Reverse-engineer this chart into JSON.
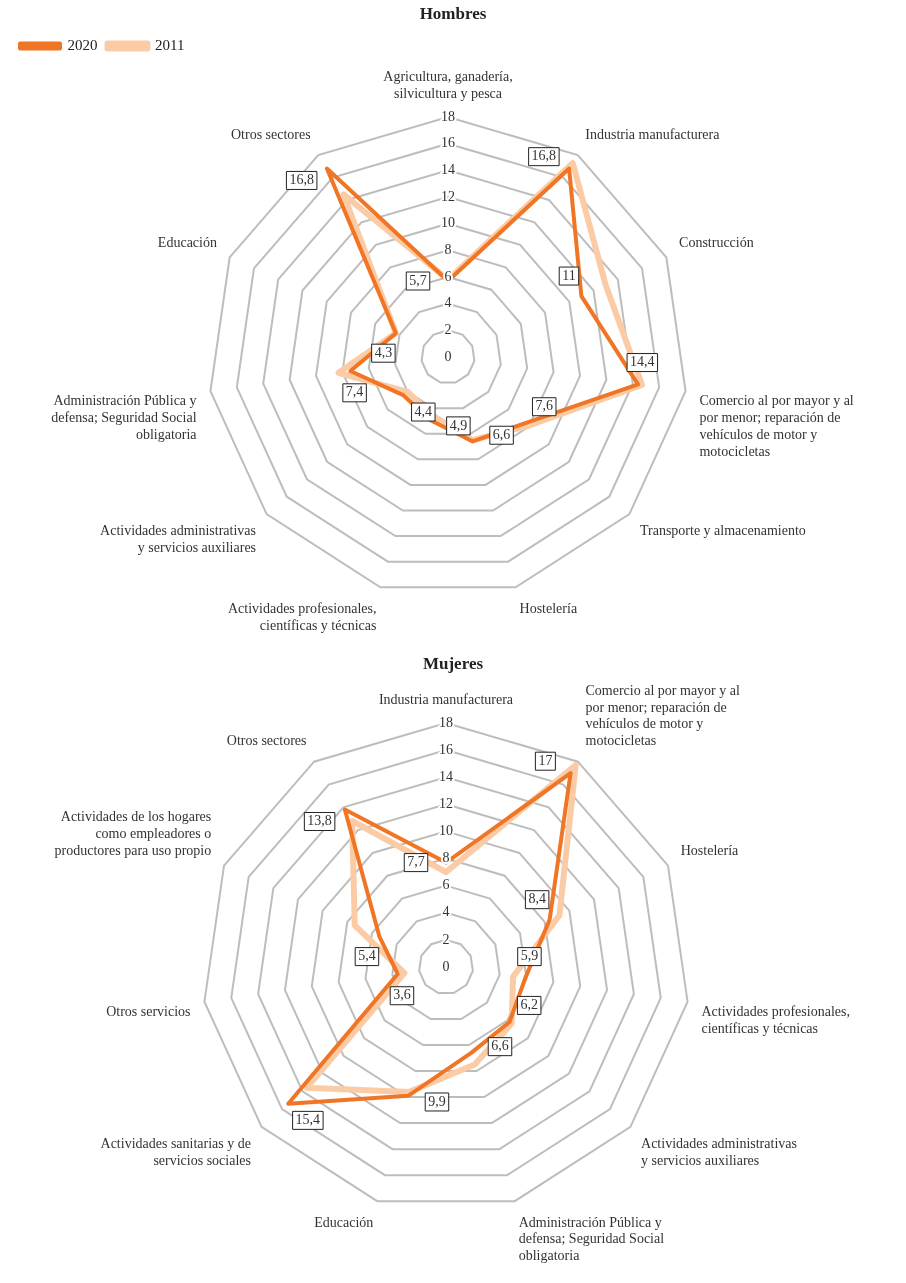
{
  "chart_data": [
    {
      "type": "radar",
      "title": "Hombres",
      "legend": "top left",
      "marker": "none",
      "grid": true,
      "categories": [
        "Agricultura, ganadería, silvicultura y pesca",
        "Industria manufacturera",
        "Construcción",
        "Comercio al por mayor y al por menor; reparación de vehículos de motor y motocicletas",
        "Transporte y almacenamiento",
        "Hostelería",
        "Actividades profesionales, científicas y técnicas",
        "Actividades administrativas y servicios auxiliares",
        "Administración Pública y defensa; Seguridad Social obligatoria",
        "Educación",
        "Otros sectores"
      ],
      "ylim": [
        0,
        18
      ],
      "yticks": [
        0,
        2,
        4,
        6,
        8,
        10,
        12,
        14,
        16,
        18
      ],
      "series": [
        {
          "name": "2020",
          "color": "#f07524",
          "values": [
            5.7,
            16.8,
            11,
            14.4,
            7.6,
            6.6,
            4.9,
            4.4,
            7.4,
            4.3,
            16.8
          ],
          "value_labels": [
            "5,7",
            "16,8",
            "11",
            "14,4",
            "7,6",
            "6,6",
            "4,9",
            "4,4",
            "7,4",
            "4,3",
            "16,8"
          ]
        },
        {
          "name": "2011",
          "color": "#fbcba6",
          "values": [
            5.8,
            17.3,
            13,
            14.7,
            7.9,
            6.5,
            4.5,
            4.0,
            8.3,
            4.3,
            14.5
          ]
        }
      ]
    },
    {
      "type": "radar",
      "title": "Mujeres",
      "marker": "none",
      "grid": true,
      "categories": [
        "Industria manufacturera",
        "Comercio al por mayor y al por menor; reparación de vehículos de motor y motocicletas",
        "Hostelería",
        "Actividades profesionales, científicas y técnicas",
        "Actividades administrativas y servicios auxiliares",
        "Administración Pública y defensa; Seguridad Social obligatoria",
        "Educación",
        "Actividades sanitarias y de servicios sociales",
        "Otros servicios",
        "Actividades de los hogares como empleadores o productores para uso propio",
        "Otros sectores"
      ],
      "ylim": [
        0,
        18
      ],
      "yticks": [
        0,
        2,
        4,
        6,
        8,
        10,
        12,
        14,
        16,
        18
      ],
      "series": [
        {
          "name": "2020",
          "color": "#f07524",
          "values": [
            7.7,
            17,
            8.4,
            5.9,
            6.2,
            6.6,
            9.9,
            15.4,
            3.6,
            5.4,
            13.8
          ],
          "value_labels": [
            "7,7",
            "17",
            "8,4",
            "5,9",
            "6,2",
            "6,6",
            "9,9",
            "15,4",
            "3,6",
            "5,4",
            "13,8"
          ]
        },
        {
          "name": "2011",
          "color": "#fbcba6",
          "values": [
            7.0,
            17.7,
            9.2,
            5.0,
            6.4,
            7.5,
            9.6,
            13.6,
            3.1,
            7.4,
            12.8
          ]
        }
      ]
    }
  ]
}
